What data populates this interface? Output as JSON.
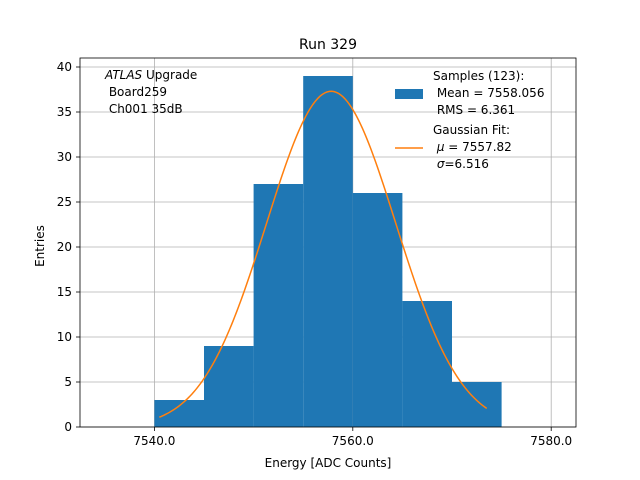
{
  "chart_data": {
    "type": "bar",
    "title": "Run 329",
    "xlabel": "Energy [ADC Counts]",
    "ylabel": "Entries",
    "xlim": [
      7532.5,
      7582.5
    ],
    "ylim": [
      0,
      41
    ],
    "xticks": [
      7540,
      7560,
      7580
    ],
    "xtick_labels": [
      "7540.0",
      "7560.0",
      "7580.0"
    ],
    "yticks": [
      0,
      5,
      10,
      15,
      20,
      25,
      30,
      35,
      40
    ],
    "grid": true,
    "bin_edges": [
      7540,
      7545,
      7550,
      7555,
      7560,
      7565,
      7570,
      7575
    ],
    "values": [
      3,
      9,
      27,
      39,
      26,
      14,
      5
    ],
    "bar_color": "#1f77b4",
    "fit": {
      "type": "gaussian",
      "color": "#ff7f0e",
      "mu": 7557.82,
      "sigma": 6.516,
      "amplitude": 37.3,
      "x_range": [
        7540.5,
        7573.5
      ]
    },
    "annotation": {
      "italic": "ATLAS",
      "rest": " Upgrade",
      "line2": " Board259",
      "line3": " Ch001 35dB"
    },
    "legend": {
      "placement": "top-right",
      "samples": {
        "line1": "Samples (123):",
        "line2": " Mean = 7558.056",
        "line3": " RMS = 6.361"
      },
      "fit": {
        "line1": "Gaussian Fit:",
        "mu_symbol": "μ",
        "mu_rest": " = 7557.82",
        "sigma_symbol": "σ",
        "sigma_rest": "=6.516"
      }
    }
  }
}
